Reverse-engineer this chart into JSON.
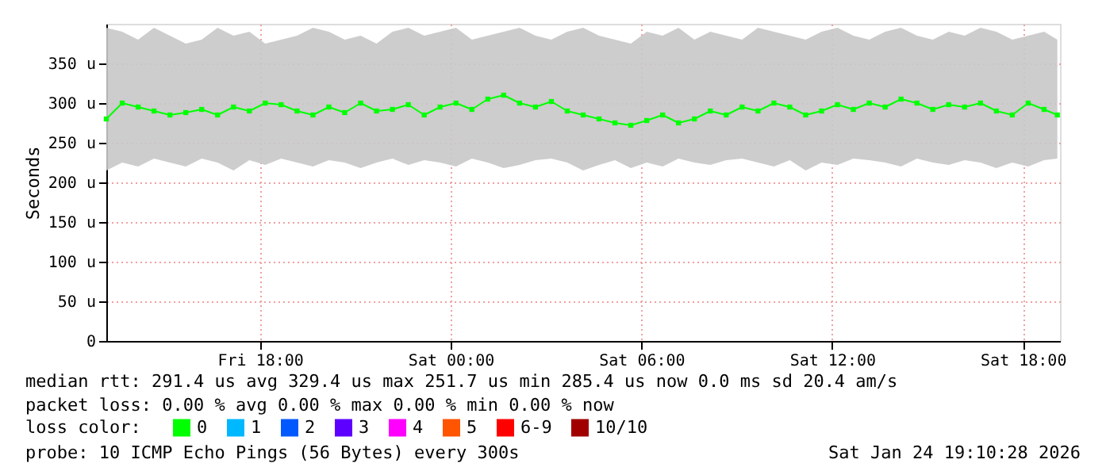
{
  "chart_data": {
    "type": "line",
    "ylabel": "Seconds",
    "legend_title": "loss color:",
    "legend": "bottom",
    "grid": true,
    "marker": "square",
    "x": [
      "2026-01-23T13:10",
      "2026-01-23T13:40",
      "2026-01-23T14:10",
      "2026-01-23T14:40",
      "2026-01-23T15:10",
      "2026-01-23T15:40",
      "2026-01-23T16:10",
      "2026-01-23T16:40",
      "2026-01-23T17:10",
      "2026-01-23T17:40",
      "2026-01-23T18:10",
      "2026-01-23T18:40",
      "2026-01-23T19:10",
      "2026-01-23T19:40",
      "2026-01-23T20:10",
      "2026-01-23T20:40",
      "2026-01-23T21:10",
      "2026-01-23T21:40",
      "2026-01-23T22:10",
      "2026-01-23T22:40",
      "2026-01-23T23:10",
      "2026-01-23T23:40",
      "2026-01-24T00:10",
      "2026-01-24T00:40",
      "2026-01-24T01:10",
      "2026-01-24T01:40",
      "2026-01-24T02:10",
      "2026-01-24T02:40",
      "2026-01-24T03:10",
      "2026-01-24T03:40",
      "2026-01-24T04:10",
      "2026-01-24T04:40",
      "2026-01-24T05:10",
      "2026-01-24T05:40",
      "2026-01-24T06:10",
      "2026-01-24T06:40",
      "2026-01-24T07:10",
      "2026-01-24T07:40",
      "2026-01-24T08:10",
      "2026-01-24T08:40",
      "2026-01-24T09:10",
      "2026-01-24T09:40",
      "2026-01-24T10:10",
      "2026-01-24T10:40",
      "2026-01-24T11:10",
      "2026-01-24T11:40",
      "2026-01-24T12:10",
      "2026-01-24T12:40",
      "2026-01-24T13:10",
      "2026-01-24T13:40",
      "2026-01-24T14:10",
      "2026-01-24T14:40",
      "2026-01-24T15:10",
      "2026-01-24T15:40",
      "2026-01-24T16:10",
      "2026-01-24T16:40",
      "2026-01-24T17:10",
      "2026-01-24T17:40",
      "2026-01-24T18:10",
      "2026-01-24T18:40",
      "2026-01-24T19:05"
    ],
    "series": [
      {
        "name": "0",
        "color": "#00ff00",
        "values": [
          280,
          300,
          295,
          290,
          285,
          288,
          292,
          285,
          295,
          290,
          300,
          298,
          290,
          285,
          295,
          288,
          300,
          290,
          292,
          298,
          285,
          295,
          300,
          292,
          305,
          310,
          300,
          295,
          302,
          290,
          285,
          280,
          275,
          272,
          278,
          285,
          275,
          280,
          290,
          285,
          295,
          290,
          300,
          295,
          285,
          290,
          298,
          292,
          300,
          295,
          305,
          300,
          292,
          298,
          295,
          300,
          290,
          285,
          300,
          292,
          285
        ],
        "lower": [
          215,
          225,
          220,
          230,
          225,
          220,
          230,
          225,
          215,
          228,
          222,
          230,
          225,
          220,
          228,
          225,
          218,
          225,
          230,
          222,
          228,
          225,
          220,
          230,
          225,
          218,
          222,
          228,
          230,
          225,
          215,
          222,
          228,
          218,
          225,
          220,
          230,
          225,
          222,
          228,
          230,
          225,
          220,
          228,
          215,
          225,
          222,
          230,
          228,
          225,
          220,
          230,
          225,
          222,
          228,
          225,
          218,
          225,
          220,
          228,
          230
        ],
        "upper": [
          395,
          390,
          380,
          395,
          385,
          375,
          380,
          395,
          385,
          390,
          375,
          380,
          385,
          395,
          390,
          380,
          385,
          375,
          390,
          395,
          385,
          390,
          395,
          380,
          385,
          390,
          395,
          385,
          380,
          390,
          395,
          385,
          380,
          375,
          390,
          385,
          395,
          380,
          390,
          385,
          380,
          395,
          390,
          385,
          380,
          390,
          395,
          385,
          380,
          390,
          395,
          385,
          380,
          390,
          385,
          395,
          390,
          380,
          385,
          390,
          380
        ]
      },
      {
        "name": "1",
        "color": "#00b8ff",
        "values": [
          null,
          null,
          null,
          null,
          null,
          null,
          null,
          null,
          null,
          null,
          null,
          null,
          null,
          null,
          null,
          null,
          null,
          null,
          null,
          null,
          null,
          null,
          null,
          null,
          null,
          null,
          null,
          null,
          null,
          null,
          null,
          null,
          null,
          null,
          null,
          null,
          null,
          null,
          null,
          null,
          null,
          null,
          null,
          null,
          null,
          null,
          null,
          null,
          null,
          null,
          null,
          null,
          null,
          null,
          null,
          null,
          null,
          null,
          null,
          null,
          null
        ]
      },
      {
        "name": "2",
        "color": "#0059ff",
        "values": [
          null,
          null,
          null,
          null,
          null,
          null,
          null,
          null,
          null,
          null,
          null,
          null,
          null,
          null,
          null,
          null,
          null,
          null,
          null,
          null,
          null,
          null,
          null,
          null,
          null,
          null,
          null,
          null,
          null,
          null,
          null,
          null,
          null,
          null,
          null,
          null,
          null,
          null,
          null,
          null,
          null,
          null,
          null,
          null,
          null,
          null,
          null,
          null,
          null,
          null,
          null,
          null,
          null,
          null,
          null,
          null,
          null,
          null,
          null,
          null,
          null
        ]
      },
      {
        "name": "3",
        "color": "#5e00ff",
        "values": [
          null,
          null,
          null,
          null,
          null,
          null,
          null,
          null,
          null,
          null,
          null,
          null,
          null,
          null,
          null,
          null,
          null,
          null,
          null,
          null,
          null,
          null,
          null,
          null,
          null,
          null,
          null,
          null,
          null,
          null,
          null,
          null,
          null,
          null,
          null,
          null,
          null,
          null,
          null,
          null,
          null,
          null,
          null,
          null,
          null,
          null,
          null,
          null,
          null,
          null,
          null,
          null,
          null,
          null,
          null,
          null,
          null,
          null,
          null,
          null,
          null
        ]
      },
      {
        "name": "4",
        "color": "#ff00ff",
        "values": [
          null,
          null,
          null,
          null,
          null,
          null,
          null,
          null,
          null,
          null,
          null,
          null,
          null,
          null,
          null,
          null,
          null,
          null,
          null,
          null,
          null,
          null,
          null,
          null,
          null,
          null,
          null,
          null,
          null,
          null,
          null,
          null,
          null,
          null,
          null,
          null,
          null,
          null,
          null,
          null,
          null,
          null,
          null,
          null,
          null,
          null,
          null,
          null,
          null,
          null,
          null,
          null,
          null,
          null,
          null,
          null,
          null,
          null,
          null,
          null,
          null
        ]
      },
      {
        "name": "5",
        "color": "#ff5500",
        "values": [
          null,
          null,
          null,
          null,
          null,
          null,
          null,
          null,
          null,
          null,
          null,
          null,
          null,
          null,
          null,
          null,
          null,
          null,
          null,
          null,
          null,
          null,
          null,
          null,
          null,
          null,
          null,
          null,
          null,
          null,
          null,
          null,
          null,
          null,
          null,
          null,
          null,
          null,
          null,
          null,
          null,
          null,
          null,
          null,
          null,
          null,
          null,
          null,
          null,
          null,
          null,
          null,
          null,
          null,
          null,
          null,
          null,
          null,
          null,
          null,
          null
        ]
      },
      {
        "name": "6-9",
        "color": "#ff0000",
        "values": [
          null,
          null,
          null,
          null,
          null,
          null,
          null,
          null,
          null,
          null,
          null,
          null,
          null,
          null,
          null,
          null,
          null,
          null,
          null,
          null,
          null,
          null,
          null,
          null,
          null,
          null,
          null,
          null,
          null,
          null,
          null,
          null,
          null,
          null,
          null,
          null,
          null,
          null,
          null,
          null,
          null,
          null,
          null,
          null,
          null,
          null,
          null,
          null,
          null,
          null,
          null,
          null,
          null,
          null,
          null,
          null,
          null,
          null,
          null,
          null,
          null
        ]
      },
      {
        "name": "10/10",
        "color": "#a10000",
        "values": [
          null,
          null,
          null,
          null,
          null,
          null,
          null,
          null,
          null,
          null,
          null,
          null,
          null,
          null,
          null,
          null,
          null,
          null,
          null,
          null,
          null,
          null,
          null,
          null,
          null,
          null,
          null,
          null,
          null,
          null,
          null,
          null,
          null,
          null,
          null,
          null,
          null,
          null,
          null,
          null,
          null,
          null,
          null,
          null,
          null,
          null,
          null,
          null,
          null,
          null,
          null,
          null,
          null,
          null,
          null,
          null,
          null,
          null,
          null,
          null,
          null
        ]
      }
    ],
    "xlim": [
      "2026-01-23T13:10",
      "2026-01-24T19:10"
    ],
    "xticks": [
      {
        "value": "2026-01-23T18:00",
        "label": "Fri 18:00"
      },
      {
        "value": "2026-01-24T00:00",
        "label": "Sat 00:00"
      },
      {
        "value": "2026-01-24T06:00",
        "label": "Sat 06:00"
      },
      {
        "value": "2026-01-24T12:00",
        "label": "Sat 12:00"
      },
      {
        "value": "2026-01-24T18:00",
        "label": "Sat 18:00"
      }
    ],
    "ylim": [
      0,
      400
    ],
    "yticks": [
      0,
      {
        "value": 50,
        "label": "50 u"
      },
      {
        "value": 100,
        "label": "100 u"
      },
      {
        "value": 150,
        "label": "150 u"
      },
      {
        "value": 200,
        "label": "200 u"
      },
      {
        "value": 250,
        "label": "250 u"
      },
      {
        "value": 300,
        "label": "300 u"
      },
      {
        "value": 350,
        "label": "350 u"
      }
    ],
    "annotations": [
      "median rtt:  291.4 us avg  329.4 us max  251.7 us min  285.4 us now  0.0 ms sd  20.4   am/s",
      "packet loss: 0.00 % avg  0.00 % max  0.00 % min  0.00 % now",
      "probe:       10 ICMP Echo Pings (56 Bytes) every 300s",
      "Sat Jan 24 19:10:28 2026"
    ]
  }
}
